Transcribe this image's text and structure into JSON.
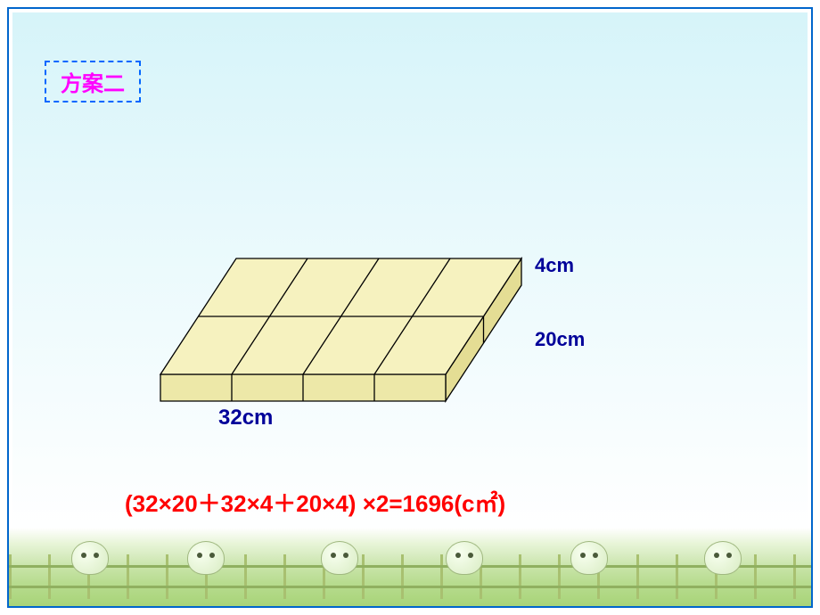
{
  "title": "方案二",
  "cuboid": {
    "type": "3d-diagram",
    "length": 32,
    "width": 20,
    "height": 4,
    "length_divisions": 4,
    "width_divisions": 2,
    "top_color": "#f6f2bf",
    "front_color": "#ede8a8",
    "side_color": "#e4dd94",
    "stroke_color": "#000000",
    "stroke_width": 1.3
  },
  "labels": {
    "length": "32cm",
    "width": "20cm",
    "height": "4cm",
    "color": "#000099",
    "fontsize": 22
  },
  "formula": {
    "text": "(32×20＋32×4＋20×4) ×2=1696(c㎡)",
    "color": "#ff0000",
    "fontsize": 26
  },
  "decor": {
    "grass_colors": [
      "#e8f5d8",
      "#d8ecc2",
      "#c8e4a8",
      "#b8dc90",
      "#a8d478"
    ],
    "fence_color": "#90b060",
    "cartoon_positions": [
      80,
      210,
      360,
      500,
      640,
      790
    ]
  }
}
